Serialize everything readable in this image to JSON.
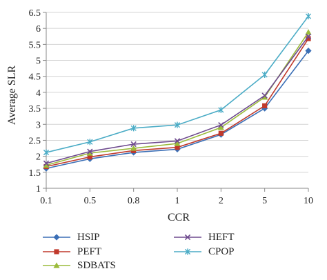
{
  "chart_data": {
    "type": "line",
    "xlabel": "CCR",
    "ylabel": "Average SLR",
    "categories": [
      "0.1",
      "0.5",
      "0.8",
      "1",
      "2",
      "5",
      "10"
    ],
    "ylim": [
      1,
      6.5
    ],
    "yticks": [
      "1",
      "1.5",
      "2",
      "2.5",
      "3",
      "3.5",
      "4",
      "4.5",
      "5",
      "5.5",
      "6",
      "6.5"
    ],
    "grid": "horizontal",
    "legend_position": "bottom",
    "series": [
      {
        "name": "HSIP",
        "color": "#3b6fb6",
        "marker": "diamond",
        "values": [
          1.62,
          1.92,
          2.12,
          2.22,
          2.68,
          3.5,
          5.3
        ]
      },
      {
        "name": "PEFT",
        "color": "#c0392b",
        "marker": "square",
        "values": [
          1.68,
          1.98,
          2.18,
          2.28,
          2.72,
          3.58,
          5.68
        ]
      },
      {
        "name": "SDBATS",
        "color": "#9bbb3b",
        "marker": "triangle",
        "values": [
          1.72,
          2.1,
          2.25,
          2.4,
          2.9,
          3.85,
          5.88
        ]
      },
      {
        "name": "HEFT",
        "color": "#6e4a8e",
        "marker": "x",
        "values": [
          1.78,
          2.15,
          2.38,
          2.48,
          2.98,
          3.9,
          5.75
        ]
      },
      {
        "name": "CPOP",
        "color": "#4bacc6",
        "marker": "star",
        "values": [
          2.12,
          2.45,
          2.88,
          2.98,
          3.45,
          4.55,
          6.38
        ]
      }
    ]
  }
}
